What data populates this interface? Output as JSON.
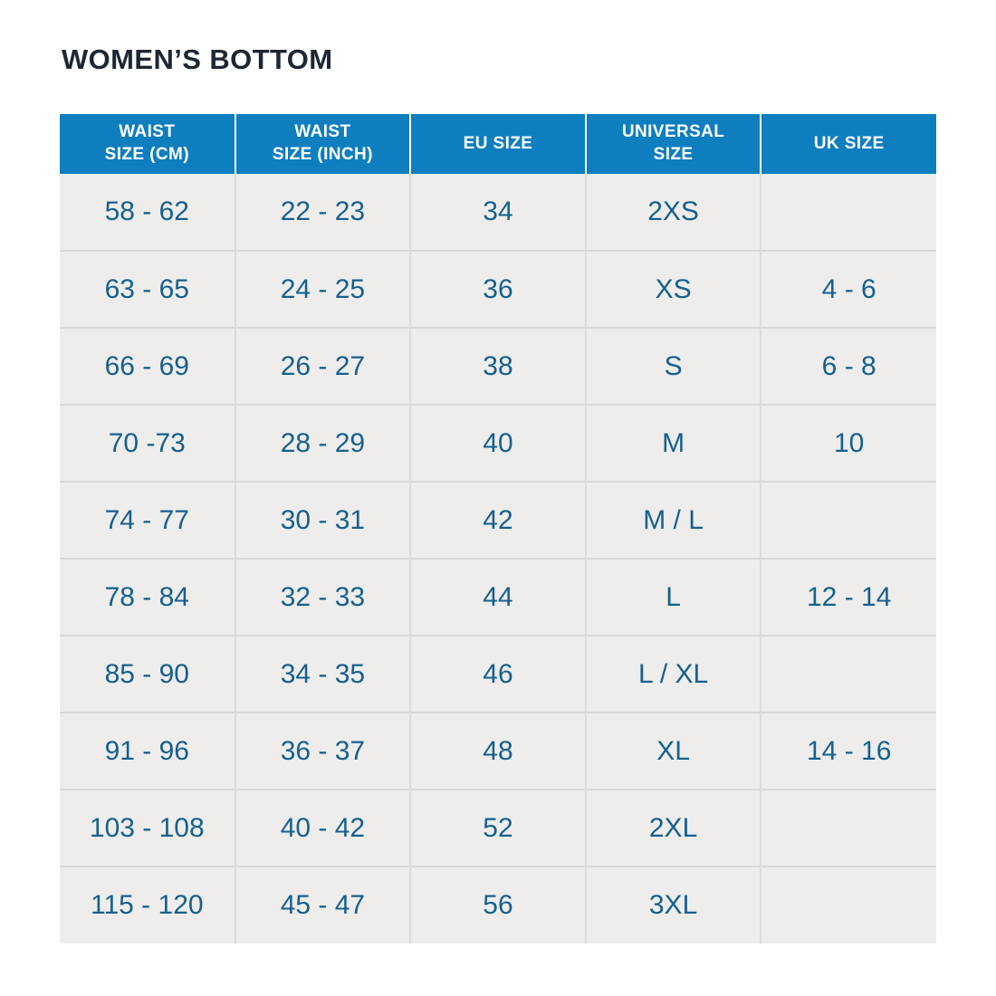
{
  "page": {
    "title": "WOMEN’S BOTTOM"
  },
  "colors": {
    "header_bg": "#0e7ebf",
    "header_text": "#ffffff",
    "row_bg": "#eeedec",
    "cell_text": "#15608f",
    "title_text": "#1d2733",
    "grid_line": "#d9d8d6",
    "col_line": "#dcdbd9"
  },
  "table": {
    "columns": [
      {
        "id": "waist_cm",
        "label": "WAIST\nSIZE (CM)"
      },
      {
        "id": "waist_inch",
        "label": "WAIST\nSIZE (INCH)"
      },
      {
        "id": "eu_size",
        "label": "EU SIZE"
      },
      {
        "id": "universal_size",
        "label": "UNIVERSAL\nSIZE"
      },
      {
        "id": "uk_size",
        "label": "UK SIZE"
      }
    ],
    "rows": [
      [
        "58 - 62",
        "22 - 23",
        "34",
        "2XS",
        ""
      ],
      [
        "63 - 65",
        "24 - 25",
        "36",
        "XS",
        "4 - 6"
      ],
      [
        "66 - 69",
        "26 - 27",
        "38",
        "S",
        "6 - 8"
      ],
      [
        "70 -73",
        "28 - 29",
        "40",
        "M",
        "10"
      ],
      [
        "74 - 77",
        "30 - 31",
        "42",
        "M / L",
        ""
      ],
      [
        "78 - 84",
        "32 - 33",
        "44",
        "L",
        "12 - 14"
      ],
      [
        "85 - 90",
        "34 - 35",
        "46",
        "L / XL",
        ""
      ],
      [
        "91 - 96",
        "36 - 37",
        "48",
        "XL",
        "14 - 16"
      ],
      [
        "103 - 108",
        "40 - 42",
        "52",
        "2XL",
        ""
      ],
      [
        "115 - 120",
        "45 - 47",
        "56",
        "3XL",
        ""
      ]
    ]
  },
  "chart_data": {
    "type": "table",
    "title": "WOMEN’S BOTTOM",
    "columns": [
      "WAIST SIZE (CM)",
      "WAIST SIZE (INCH)",
      "EU SIZE",
      "UNIVERSAL SIZE",
      "UK SIZE"
    ],
    "rows": [
      [
        "58 - 62",
        "22 - 23",
        "34",
        "2XS",
        ""
      ],
      [
        "63 - 65",
        "24 - 25",
        "36",
        "XS",
        "4 - 6"
      ],
      [
        "66 - 69",
        "26 - 27",
        "38",
        "S",
        "6 - 8"
      ],
      [
        "70 -73",
        "28 - 29",
        "40",
        "M",
        "10"
      ],
      [
        "74 - 77",
        "30 - 31",
        "42",
        "M / L",
        ""
      ],
      [
        "78 - 84",
        "32 - 33",
        "44",
        "L",
        "12 - 14"
      ],
      [
        "85 - 90",
        "34 - 35",
        "46",
        "L / XL",
        ""
      ],
      [
        "91 - 96",
        "36 - 37",
        "48",
        "XL",
        "14 - 16"
      ],
      [
        "103 - 108",
        "40 - 42",
        "52",
        "2XL",
        ""
      ],
      [
        "115 - 120",
        "45 - 47",
        "56",
        "3XL",
        ""
      ]
    ]
  }
}
